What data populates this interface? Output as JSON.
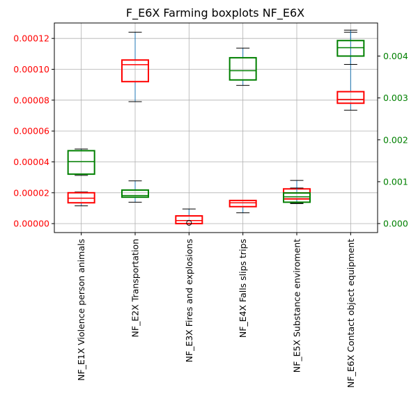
{
  "chart_data": {
    "type": "boxplot",
    "title": "F_E6X Farming boxplots NF_E6X",
    "categories": [
      "NF_E1X Violence person animals",
      "NF_E2X Transportation",
      "NF_E3X Fires and explosions",
      "NF_E4X Falls slips trips",
      "NF_E5X Substance enviroment",
      "NF_E6X Contact object equipment"
    ],
    "grid": true,
    "axes": {
      "left": {
        "color": "#ff0000",
        "ylim": [
          -5.8e-06,
          0.00013
        ],
        "ticks": [
          0.0,
          2e-05,
          4e-05,
          6e-05,
          8e-05,
          0.0001,
          0.00012
        ],
        "tick_labels": [
          "0.00000",
          "0.00002",
          "0.00004",
          "0.00006",
          "0.00008",
          "0.00010",
          "0.00012"
        ]
      },
      "right": {
        "color": "#008000",
        "ylim": [
          -0.000215,
          0.00479
        ],
        "ticks": [
          0.0,
          0.001,
          0.002,
          0.003,
          0.004
        ],
        "tick_labels": [
          "0.000",
          "0.001",
          "0.002",
          "0.003",
          "0.004"
        ]
      }
    },
    "series": [
      {
        "axis": "left",
        "box_color": "#ff0000",
        "boxes": [
          {
            "whislo": 1.15e-05,
            "q1": 1.35e-05,
            "med": 1.65e-05,
            "q3": 2e-05,
            "whishi": 2.05e-05,
            "fliers": []
          },
          {
            "whislo": 7.9e-05,
            "q1": 9.2e-05,
            "med": 0.000103,
            "q3": 0.000106,
            "whishi": 0.000124,
            "fliers": []
          },
          {
            "whislo": 0.0,
            "q1": 0.0,
            "med": 2e-06,
            "q3": 5e-06,
            "whishi": 9.5e-06,
            "fliers": [
              5e-07
            ]
          },
          {
            "whislo": 7e-06,
            "q1": 1.1e-05,
            "med": 1.35e-05,
            "q3": 1.5e-05,
            "whishi": 1.5e-05,
            "fliers": []
          },
          {
            "whislo": 1.3e-05,
            "q1": 1.6e-05,
            "med": 2e-05,
            "q3": 2.25e-05,
            "whishi": 2.8e-05,
            "fliers": []
          },
          {
            "whislo": 7.35e-05,
            "q1": 7.8e-05,
            "med": 8.05e-05,
            "q3": 8.55e-05,
            "whishi": 0.000124,
            "fliers": []
          }
        ]
      },
      {
        "axis": "right",
        "box_color": "#008000",
        "boxes": [
          {
            "whislo": 0.00115,
            "q1": 0.00118,
            "med": 0.00148,
            "q3": 0.00174,
            "whishi": 0.00178,
            "fliers": []
          },
          {
            "whislo": 0.00051,
            "q1": 0.00063,
            "med": 0.00067,
            "q3": 0.0008,
            "whishi": 0.00102,
            "fliers": []
          },
          null,
          {
            "whislo": 0.0033,
            "q1": 0.00343,
            "med": 0.00365,
            "q3": 0.00396,
            "whishi": 0.00419,
            "fliers": []
          },
          {
            "whislo": 0.00049,
            "q1": 0.00051,
            "med": 0.00064,
            "q3": 0.00073,
            "whishi": 0.00085,
            "fliers": []
          },
          {
            "whislo": 0.0038,
            "q1": 0.004,
            "med": 0.0042,
            "q3": 0.00437,
            "whishi": 0.00462,
            "fliers": []
          }
        ]
      }
    ],
    "median_color": "#1f77b4",
    "whisker_color": "#1f77b4"
  }
}
